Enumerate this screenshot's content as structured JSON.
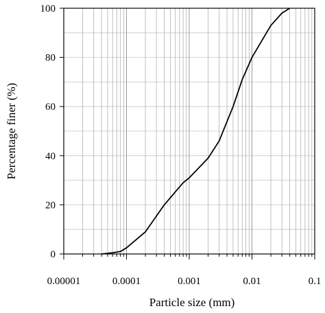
{
  "chart_data": {
    "type": "line",
    "title": "",
    "xlabel": "Particle size (mm)",
    "ylabel": "Percentage finer (%)",
    "x_scale": "log",
    "xlim": [
      1e-05,
      0.1
    ],
    "ylim": [
      0,
      100
    ],
    "x_ticks": [
      1e-05,
      0.0001,
      0.001,
      0.01,
      0.1
    ],
    "x_tick_labels": [
      "0.00001",
      "0.0001",
      "0.001",
      "0.01",
      "0.1"
    ],
    "y_ticks": [
      0,
      20,
      40,
      60,
      80,
      100
    ],
    "y_tick_labels": [
      "0",
      "20",
      "40",
      "60",
      "80",
      "100"
    ],
    "grid": true,
    "series": [
      {
        "x": [
          4e-05,
          6e-05,
          8e-05,
          0.0001,
          0.0002,
          0.0004,
          0.0008,
          0.001,
          0.002,
          0.003,
          0.005,
          0.007,
          0.01,
          0.02,
          0.03,
          0.04
        ],
        "y": [
          0,
          0.5,
          1,
          2.5,
          9,
          20,
          29,
          31,
          39,
          46,
          60,
          71,
          80,
          93,
          98,
          100
        ]
      }
    ]
  }
}
